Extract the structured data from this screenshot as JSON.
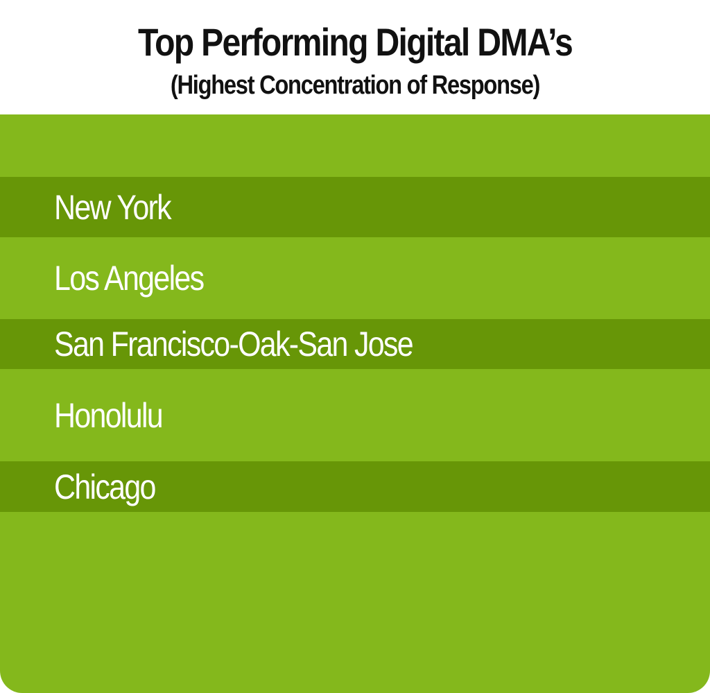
{
  "header": {
    "title": "Top Performing Digital DMA’s",
    "subtitle": "(Highest Concentration of Response)"
  },
  "list": {
    "items": [
      "New York",
      "Los Angeles",
      "San Francisco-Oak-San Jose",
      "Honolulu",
      "Chicago"
    ]
  }
}
